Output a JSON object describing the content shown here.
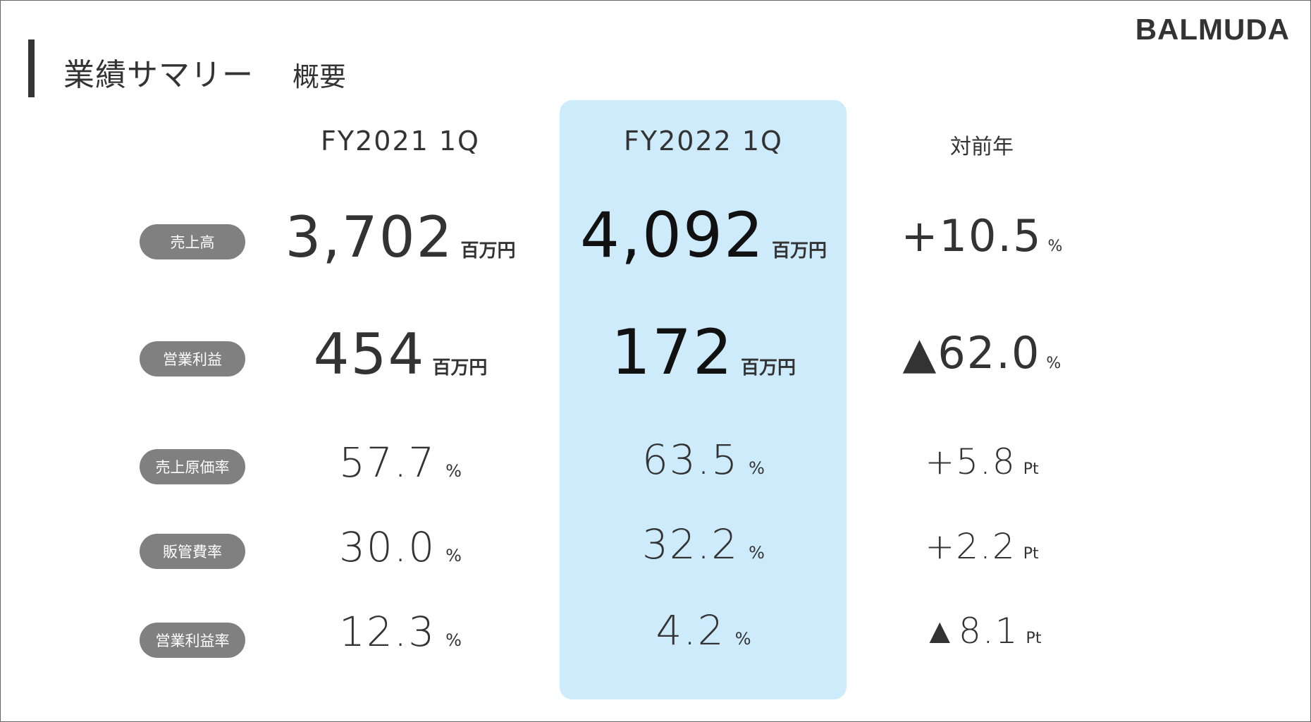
{
  "page": {
    "title": "業績サマリー",
    "subtitle": "概要",
    "logo": "BALMUDA"
  },
  "columns": {
    "prev": "FY2021 1Q",
    "curr": "FY2022 1Q",
    "yoy": "対前年"
  },
  "rows": [
    {
      "label": "売上高",
      "prev": {
        "value": "3,702",
        "unit": "百万円"
      },
      "curr": {
        "value": "4,092",
        "unit": "百万円"
      },
      "yoy": {
        "value": "+10.5",
        "unit": "%"
      }
    },
    {
      "label": "営業利益",
      "prev": {
        "value": "454",
        "unit": "百万円"
      },
      "curr": {
        "value": "172",
        "unit": "百万円"
      },
      "yoy": {
        "value": "▲62.0",
        "unit": "%"
      }
    },
    {
      "label": "売上原価率",
      "prev": {
        "value": "57.7",
        "unit": "%"
      },
      "curr": {
        "value": "63.5",
        "unit": "%"
      },
      "yoy": {
        "value": "+5.8",
        "unit": "Pt"
      }
    },
    {
      "label": "販管費率",
      "prev": {
        "value": "30.0",
        "unit": "%"
      },
      "curr": {
        "value": "32.2",
        "unit": "%"
      },
      "yoy": {
        "value": "+2.2",
        "unit": "Pt"
      }
    },
    {
      "label": "営業利益率",
      "prev": {
        "value": "12.3",
        "unit": "%"
      },
      "curr": {
        "value": "4.2",
        "unit": "%"
      },
      "yoy": {
        "value": "▲8.1",
        "unit": "Pt"
      }
    }
  ],
  "colors": {
    "highlight": "#cdebfb",
    "label_pill": "#808080",
    "text": "#333333"
  }
}
